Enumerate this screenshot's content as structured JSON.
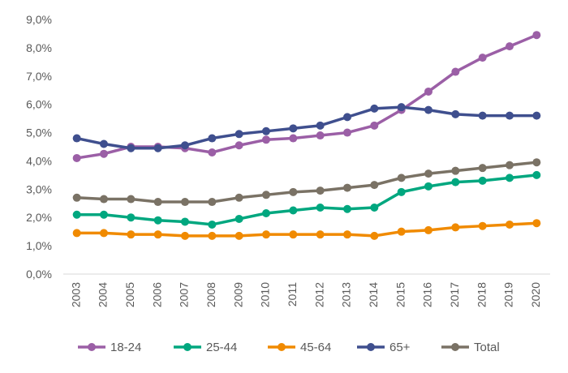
{
  "chart_data": {
    "type": "line",
    "title": "",
    "xlabel": "",
    "ylabel": "",
    "ylim": [
      0,
      9
    ],
    "y_ticks": [
      "0,0%",
      "1,0%",
      "2,0%",
      "3,0%",
      "4,0%",
      "5,0%",
      "6,0%",
      "7,0%",
      "8,0%",
      "9,0%"
    ],
    "grid": false,
    "legend_position": "bottom",
    "x": [
      "2003",
      "2004",
      "2005",
      "2006",
      "2007",
      "2008",
      "2009",
      "2010",
      "2011",
      "2012",
      "2013",
      "2014",
      "2015",
      "2016",
      "2017",
      "2018",
      "2019",
      "2020"
    ],
    "series": [
      {
        "name": "18-24",
        "color": "#9b5fa6",
        "values": [
          4.1,
          4.25,
          4.5,
          4.5,
          4.45,
          4.3,
          4.55,
          4.75,
          4.8,
          4.9,
          5.0,
          5.25,
          5.8,
          6.45,
          7.15,
          7.65,
          8.05,
          8.45
        ]
      },
      {
        "name": "25-44",
        "color": "#00a77f",
        "values": [
          2.1,
          2.1,
          2.0,
          1.9,
          1.85,
          1.75,
          1.95,
          2.15,
          2.25,
          2.35,
          2.3,
          2.35,
          2.9,
          3.1,
          3.25,
          3.3,
          3.4,
          3.5
        ]
      },
      {
        "name": "45-64",
        "color": "#f08a00",
        "values": [
          1.45,
          1.45,
          1.4,
          1.4,
          1.35,
          1.35,
          1.35,
          1.4,
          1.4,
          1.4,
          1.4,
          1.35,
          1.5,
          1.55,
          1.65,
          1.7,
          1.75,
          1.8
        ]
      },
      {
        "name": "65+",
        "color": "#3f4f8e",
        "values": [
          4.8,
          4.6,
          4.45,
          4.45,
          4.55,
          4.8,
          4.95,
          5.05,
          5.15,
          5.25,
          5.55,
          5.85,
          5.9,
          5.8,
          5.65,
          5.6,
          5.6,
          5.6
        ]
      },
      {
        "name": "Total",
        "color": "#7a7265",
        "values": [
          2.7,
          2.65,
          2.65,
          2.55,
          2.55,
          2.55,
          2.7,
          2.8,
          2.9,
          2.95,
          3.05,
          3.15,
          3.4,
          3.55,
          3.65,
          3.75,
          3.85,
          3.95
        ]
      }
    ]
  }
}
